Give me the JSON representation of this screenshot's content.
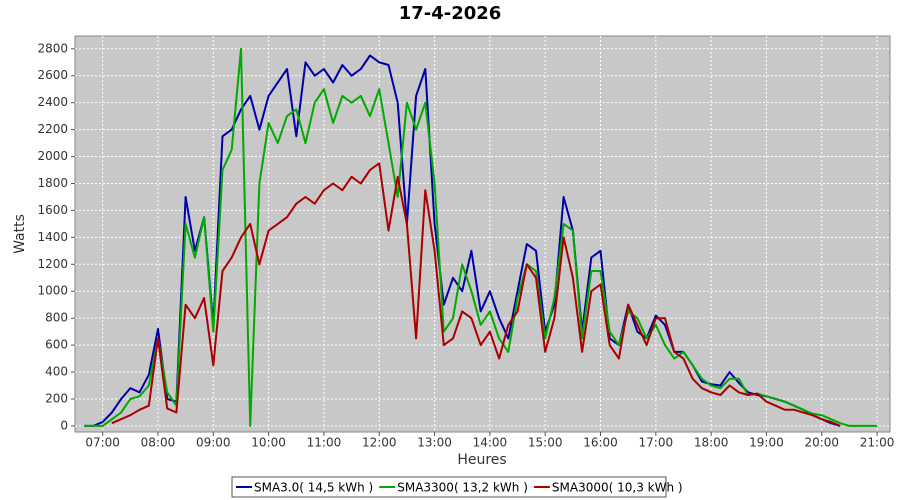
{
  "chart_data": {
    "type": "line",
    "title": "17-4-2026",
    "x_label": "Heures",
    "y_label": "Watts",
    "x": [
      400,
      410,
      420,
      430,
      440,
      450,
      460,
      470,
      480,
      490,
      500,
      510,
      520,
      530,
      540,
      550,
      560,
      570,
      580,
      590,
      600,
      610,
      620,
      630,
      640,
      650,
      660,
      670,
      680,
      690,
      700,
      710,
      720,
      730,
      740,
      750,
      760,
      770,
      780,
      790,
      800,
      810,
      820,
      830,
      840,
      850,
      860,
      870,
      880,
      890,
      900,
      910,
      920,
      930,
      940,
      950,
      960,
      970,
      980,
      990,
      1000,
      1010,
      1020,
      1030,
      1040,
      1050,
      1060,
      1070,
      1080,
      1090,
      1100,
      1110,
      1120,
      1130,
      1140,
      1150,
      1160,
      1170,
      1180,
      1190,
      1200,
      1210,
      1220,
      1230,
      1240,
      1250,
      1260
    ],
    "series": [
      {
        "name": "SMA3.0( 14,5 kWh )",
        "color": "#0000aa",
        "values": [
          0,
          0,
          30,
          100,
          200,
          280,
          250,
          380,
          720,
          200,
          180,
          1700,
          1300,
          1550,
          750,
          2150,
          2200,
          2350,
          2450,
          2200,
          2450,
          2550,
          2650,
          2150,
          2700,
          2600,
          2650,
          2550,
          2680,
          2600,
          2650,
          2750,
          2700,
          2680,
          2400,
          1500,
          2450,
          2650,
          1500,
          900,
          1100,
          1000,
          1300,
          850,
          1000,
          800,
          650,
          1000,
          1350,
          1300,
          700,
          900,
          1700,
          1450,
          700,
          1250,
          1300,
          650,
          600,
          900,
          700,
          650,
          820,
          750,
          550,
          550,
          450,
          330,
          310,
          300,
          400,
          320,
          250,
          230,
          220,
          200,
          180,
          150,
          120,
          80,
          50,
          20,
          0,
          null,
          null,
          null,
          null
        ]
      },
      {
        "name": "SMA3300( 13,2 kWh )",
        "color": "#00aa00",
        "values": [
          0,
          0,
          0,
          50,
          100,
          200,
          220,
          300,
          650,
          250,
          150,
          1500,
          1250,
          1550,
          700,
          1900,
          2050,
          2800,
          0,
          1800,
          2250,
          2100,
          2300,
          2350,
          2100,
          2400,
          2500,
          2250,
          2450,
          2400,
          2450,
          2300,
          2500,
          2100,
          1700,
          2400,
          2200,
          2400,
          1800,
          700,
          800,
          1200,
          1000,
          750,
          850,
          650,
          550,
          950,
          1200,
          1150,
          650,
          950,
          1500,
          1450,
          650,
          1150,
          1150,
          700,
          600,
          850,
          800,
          650,
          750,
          600,
          500,
          550,
          450,
          350,
          300,
          280,
          350,
          350,
          230,
          240,
          220,
          200,
          180,
          150,
          120,
          90,
          80,
          50,
          20,
          0,
          0,
          0,
          0
        ]
      },
      {
        "name": "SMA3000( 10,3 kWh )",
        "color": "#aa0000",
        "values": [
          null,
          null,
          null,
          20,
          50,
          80,
          120,
          150,
          650,
          130,
          100,
          900,
          800,
          950,
          450,
          1150,
          1250,
          1400,
          1500,
          1200,
          1450,
          1500,
          1550,
          1650,
          1700,
          1650,
          1750,
          1800,
          1750,
          1850,
          1800,
          1900,
          1950,
          1450,
          1850,
          1500,
          650,
          1750,
          1300,
          600,
          650,
          850,
          800,
          600,
          700,
          500,
          750,
          850,
          1200,
          1100,
          550,
          800,
          1400,
          1100,
          550,
          1000,
          1050,
          600,
          500,
          900,
          750,
          600,
          800,
          800,
          550,
          500,
          350,
          280,
          250,
          230,
          300,
          250,
          230,
          240,
          180,
          150,
          120,
          120,
          100,
          80,
          50,
          30,
          0,
          null,
          null,
          null,
          null
        ]
      }
    ],
    "xlim": [
      390,
      1274
    ],
    "xticks": [
      {
        "value": 420,
        "label": "07:00"
      },
      {
        "value": 480,
        "label": "08:00"
      },
      {
        "value": 540,
        "label": "09:00"
      },
      {
        "value": 600,
        "label": "10:00"
      },
      {
        "value": 660,
        "label": "11:00"
      },
      {
        "value": 720,
        "label": "12:00"
      },
      {
        "value": 780,
        "label": "13:00"
      },
      {
        "value": 840,
        "label": "14:00"
      },
      {
        "value": 900,
        "label": "15:00"
      },
      {
        "value": 960,
        "label": "16:00"
      },
      {
        "value": 1020,
        "label": "17:00"
      },
      {
        "value": 1080,
        "label": "18:00"
      },
      {
        "value": 1140,
        "label": "19:00"
      },
      {
        "value": 1200,
        "label": "20:00"
      },
      {
        "value": 1260,
        "label": "21:00"
      }
    ],
    "ylim": [
      -45,
      2895
    ],
    "yticks": [
      0,
      200,
      400,
      600,
      800,
      1000,
      1200,
      1400,
      1600,
      1800,
      2000,
      2200,
      2400,
      2600,
      2800
    ],
    "grid": true,
    "legend": "bottom"
  }
}
